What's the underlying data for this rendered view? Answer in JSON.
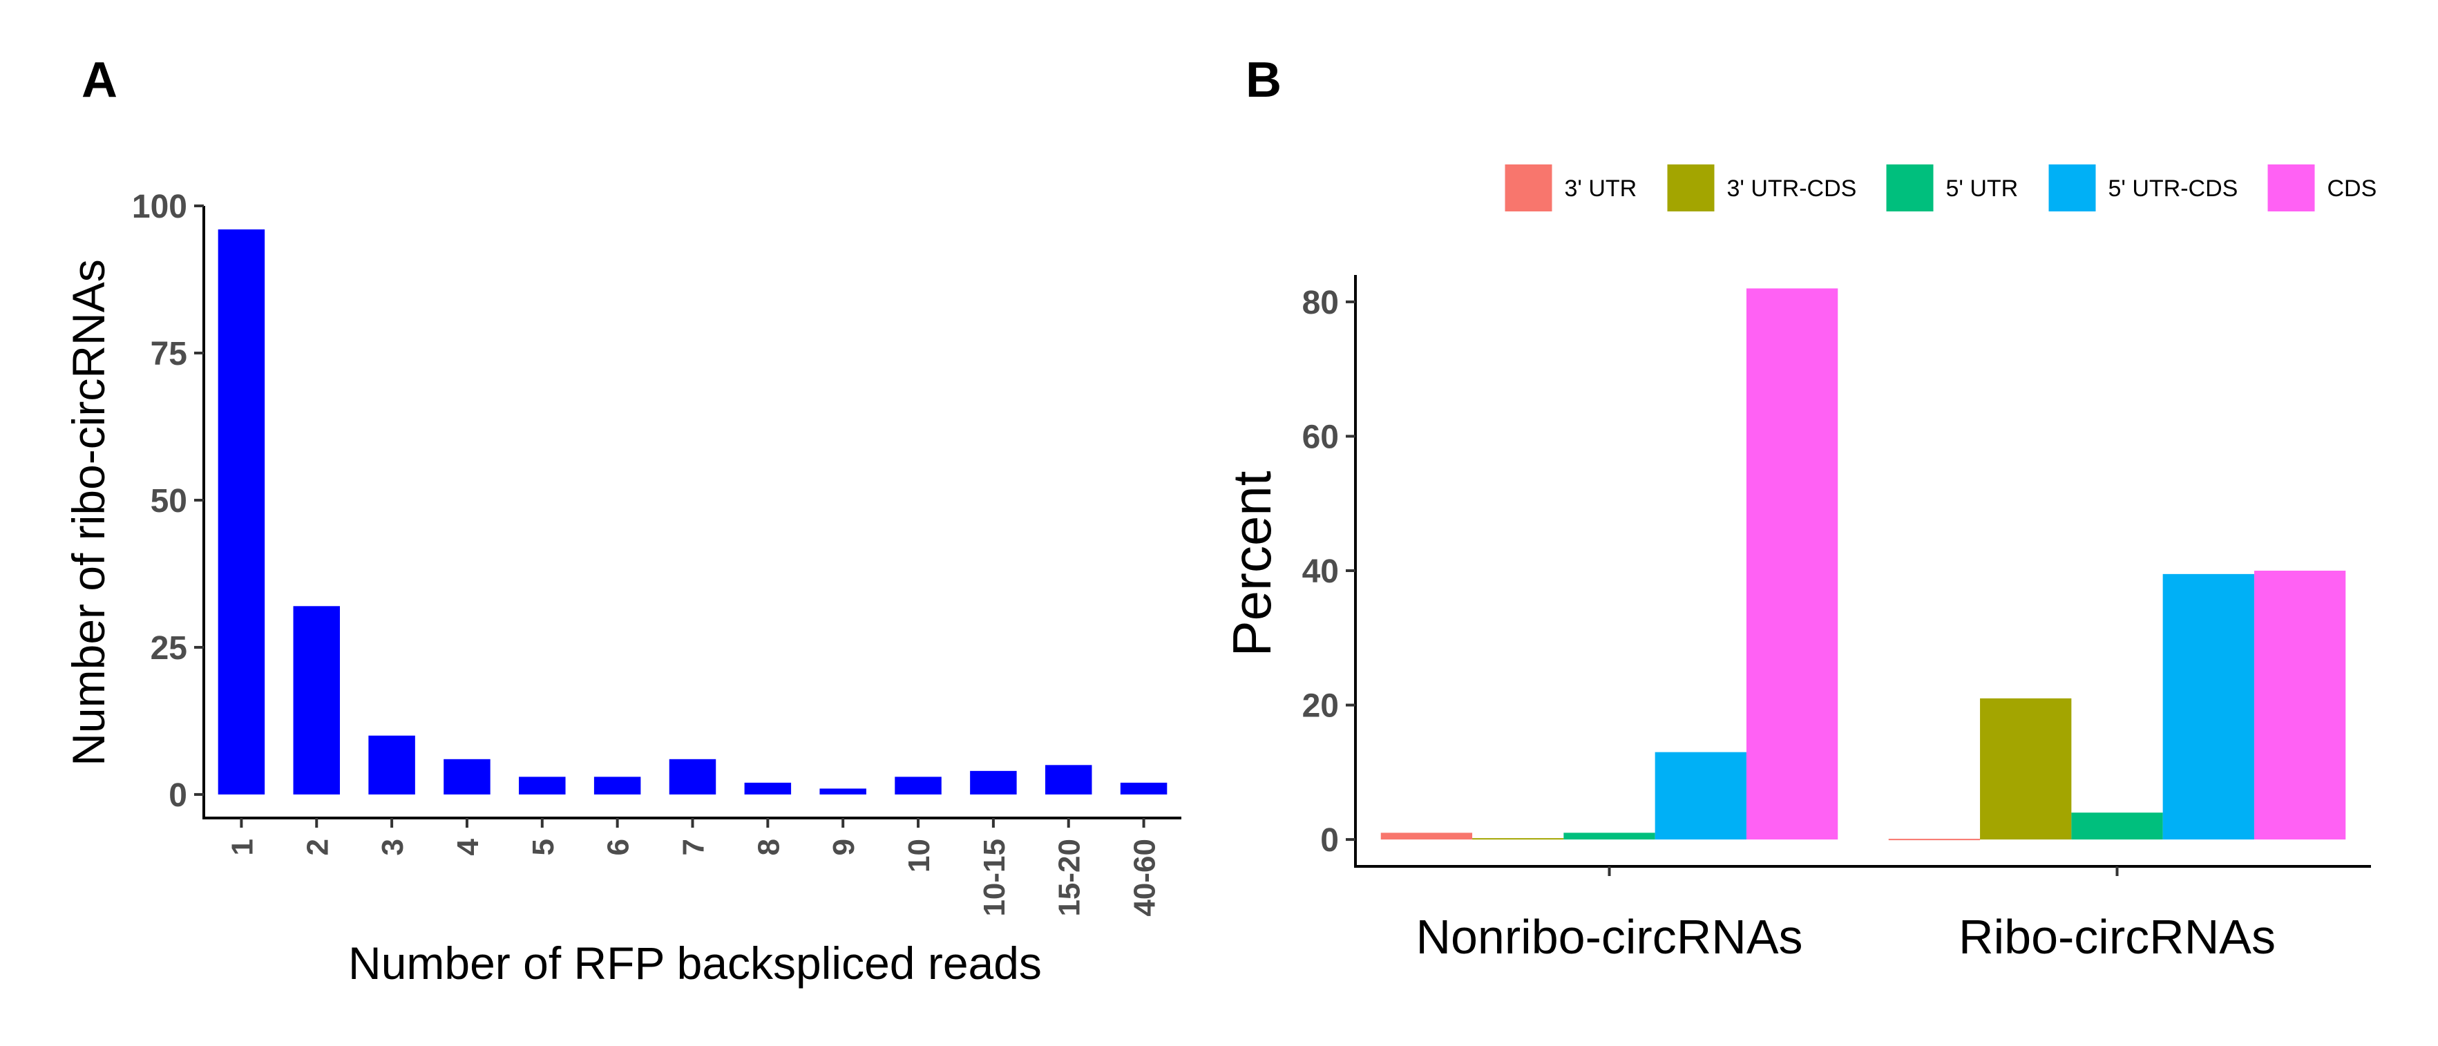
{
  "panels": {
    "a_label": "A",
    "b_label": "B"
  },
  "chart_data": [
    {
      "type": "bar",
      "title": "",
      "xlabel": "Number of RFP backspliced reads",
      "ylabel": "Number of ribo-circRNAs",
      "categories": [
        "1",
        "2",
        "3",
        "4",
        "5",
        "6",
        "7",
        "8",
        "9",
        "10",
        "10-15",
        "15-20",
        "40-60"
      ],
      "values": [
        96,
        32,
        10,
        6,
        3,
        3,
        6,
        2,
        1,
        3,
        4,
        5,
        2
      ],
      "yticks": [
        0,
        25,
        50,
        75,
        100
      ],
      "ylim": [
        -4,
        100
      ],
      "color": "#0000ff"
    },
    {
      "type": "bar",
      "title": "",
      "xlabel": "",
      "ylabel": "Percent",
      "categories": [
        "Nonribo-circRNAs",
        "Ribo-circRNAs"
      ],
      "series": [
        {
          "name": "3' UTR",
          "color": "#f8766d",
          "values": [
            1,
            0.1
          ]
        },
        {
          "name": "3' UTR-CDS",
          "color": "#a3a500",
          "values": [
            0.2,
            21
          ]
        },
        {
          "name": "5' UTR",
          "color": "#00bf7d",
          "values": [
            1,
            4
          ]
        },
        {
          "name": "5' UTR-CDS",
          "color": "#00b0f6",
          "values": [
            13,
            39.5
          ]
        },
        {
          "name": "CDS",
          "color": "#ff61f4",
          "values": [
            82,
            40
          ]
        }
      ],
      "yticks": [
        0,
        20,
        40,
        60,
        80
      ],
      "ylim": [
        -4,
        84
      ],
      "legend": "top"
    }
  ]
}
